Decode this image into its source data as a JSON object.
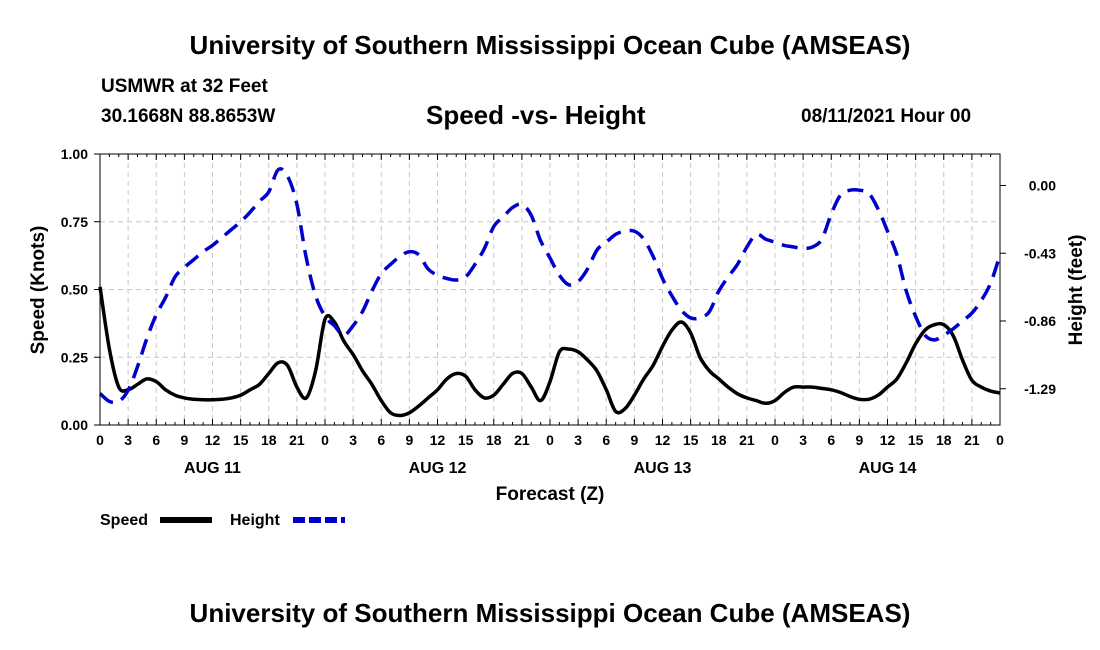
{
  "header": {
    "title": "University of Southern Mississippi Ocean Cube (AMSEAS)",
    "station": "USMWR at 32 Feet",
    "coordinates": "30.1668N  88.8653W",
    "subtitle": "Speed -vs- Height",
    "datetime": "08/11/2021 Hour 00"
  },
  "footer": {
    "title": "University of Southern Mississippi Ocean Cube (AMSEAS)"
  },
  "chart_data": {
    "type": "line",
    "title": "Speed -vs- Height",
    "xlabel": "Forecast (Z)",
    "ylabel": "Speed (Knots)",
    "y2label": "Height (feet)",
    "xlim": [
      0,
      96
    ],
    "ylim": [
      0,
      1.0
    ],
    "y2lim": [
      -1.52,
      0.2
    ],
    "x_ticks": [
      0,
      3,
      6,
      9,
      12,
      15,
      18,
      21,
      24,
      27,
      30,
      33,
      36,
      39,
      42,
      45,
      48,
      51,
      54,
      57,
      60,
      63,
      66,
      69,
      72,
      75,
      78,
      81,
      84,
      87,
      90,
      93,
      96
    ],
    "x_tick_labels": [
      "0",
      "3",
      "6",
      "9",
      "12",
      "15",
      "18",
      "21",
      "0",
      "3",
      "6",
      "9",
      "12",
      "15",
      "18",
      "21",
      "0",
      "3",
      "6",
      "9",
      "12",
      "15",
      "18",
      "21",
      "0",
      "3",
      "6",
      "9",
      "12",
      "15",
      "18",
      "21",
      "0"
    ],
    "date_labels": [
      {
        "x": 12,
        "label": "AUG 11"
      },
      {
        "x": 36,
        "label": "AUG 12"
      },
      {
        "x": 60,
        "label": "AUG 13"
      },
      {
        "x": 84,
        "label": "AUG 14"
      }
    ],
    "y_ticks": [
      "1.00",
      "0.75",
      "0.50",
      "0.25",
      "0.00"
    ],
    "y_tick_values": [
      1.0,
      0.75,
      0.5,
      0.25,
      0.0
    ],
    "y2_ticks": [
      "0.00",
      "-0.43",
      "-0.86",
      "-1.29"
    ],
    "y2_tick_values": [
      0.0,
      -0.43,
      -0.86,
      -1.29
    ],
    "grid": true,
    "legend_position": "bottom-left",
    "series": [
      {
        "name": "Speed",
        "axis": "left",
        "color": "#000000",
        "dash": "solid",
        "x": [
          0,
          1,
          2,
          3,
          4,
          5,
          6,
          7,
          8,
          9,
          10,
          11,
          12,
          13,
          14,
          15,
          16,
          17,
          18,
          19,
          20,
          21,
          22,
          23,
          24,
          25,
          26,
          27,
          28,
          29,
          30,
          31,
          32,
          33,
          34,
          35,
          36,
          37,
          38,
          39,
          40,
          41,
          42,
          43,
          44,
          45,
          46,
          47,
          48,
          49,
          50,
          51,
          52,
          53,
          54,
          55,
          56,
          57,
          58,
          59,
          60,
          61,
          62,
          63,
          64,
          65,
          66,
          67,
          68,
          69,
          70,
          71,
          72,
          73,
          74,
          75,
          76,
          77,
          78,
          79,
          80,
          81,
          82,
          83,
          84,
          85,
          86,
          87,
          88,
          89,
          90,
          91,
          92,
          93,
          94,
          95,
          96
        ],
        "values": [
          0.51,
          0.28,
          0.14,
          0.13,
          0.15,
          0.17,
          0.16,
          0.13,
          0.11,
          0.1,
          0.095,
          0.093,
          0.093,
          0.095,
          0.1,
          0.11,
          0.13,
          0.15,
          0.19,
          0.23,
          0.22,
          0.14,
          0.1,
          0.2,
          0.39,
          0.38,
          0.31,
          0.26,
          0.2,
          0.15,
          0.09,
          0.045,
          0.035,
          0.045,
          0.07,
          0.1,
          0.13,
          0.17,
          0.19,
          0.18,
          0.13,
          0.1,
          0.11,
          0.15,
          0.19,
          0.19,
          0.14,
          0.09,
          0.16,
          0.27,
          0.28,
          0.27,
          0.24,
          0.2,
          0.13,
          0.05,
          0.06,
          0.11,
          0.17,
          0.22,
          0.29,
          0.35,
          0.38,
          0.34,
          0.25,
          0.2,
          0.17,
          0.14,
          0.115,
          0.1,
          0.09,
          0.08,
          0.09,
          0.12,
          0.14,
          0.14,
          0.14,
          0.135,
          0.13,
          0.12,
          0.105,
          0.095,
          0.095,
          0.11,
          0.14,
          0.17,
          0.23,
          0.3,
          0.35,
          0.37,
          0.37,
          0.33,
          0.24,
          0.165,
          0.14,
          0.125,
          0.118
        ]
      },
      {
        "name": "Height",
        "axis": "right",
        "color": "#0000cc",
        "dash": "dashed",
        "x": [
          0,
          1,
          2,
          3,
          4,
          5,
          6,
          7,
          8,
          9,
          10,
          11,
          12,
          13,
          14,
          15,
          16,
          17,
          18,
          19,
          20,
          21,
          22,
          23,
          24,
          25,
          26,
          27,
          28,
          29,
          30,
          31,
          32,
          33,
          34,
          35,
          36,
          37,
          38,
          39,
          40,
          41,
          42,
          43,
          44,
          45,
          46,
          47,
          48,
          49,
          50,
          51,
          52,
          53,
          54,
          55,
          56,
          57,
          58,
          59,
          60,
          61,
          62,
          63,
          64,
          65,
          66,
          67,
          68,
          69,
          70,
          71,
          72,
          73,
          74,
          75,
          76,
          77,
          78,
          79,
          80,
          81,
          82,
          83,
          84,
          85,
          86,
          87,
          88,
          89,
          90,
          91,
          92,
          93,
          94,
          95,
          96
        ],
        "values": [
          -1.32,
          -1.37,
          -1.37,
          -1.3,
          -1.15,
          -0.97,
          -0.82,
          -0.71,
          -0.58,
          -0.52,
          -0.47,
          -0.42,
          -0.38,
          -0.33,
          -0.28,
          -0.23,
          -0.17,
          -0.1,
          -0.04,
          0.1,
          0.06,
          -0.12,
          -0.46,
          -0.7,
          -0.83,
          -0.89,
          -0.95,
          -0.89,
          -0.8,
          -0.67,
          -0.56,
          -0.5,
          -0.45,
          -0.42,
          -0.44,
          -0.53,
          -0.57,
          -0.59,
          -0.6,
          -0.58,
          -0.5,
          -0.4,
          -0.26,
          -0.2,
          -0.14,
          -0.12,
          -0.19,
          -0.35,
          -0.46,
          -0.57,
          -0.63,
          -0.61,
          -0.53,
          -0.41,
          -0.36,
          -0.31,
          -0.29,
          -0.29,
          -0.34,
          -0.45,
          -0.59,
          -0.7,
          -0.79,
          -0.84,
          -0.84,
          -0.8,
          -0.67,
          -0.58,
          -0.5,
          -0.39,
          -0.31,
          -0.34,
          -0.36,
          -0.38,
          -0.39,
          -0.4,
          -0.39,
          -0.34,
          -0.18,
          -0.06,
          -0.03,
          -0.03,
          -0.05,
          -0.15,
          -0.29,
          -0.44,
          -0.67,
          -0.83,
          -0.95,
          -0.98,
          -0.95,
          -0.91,
          -0.86,
          -0.81,
          -0.73,
          -0.62,
          -0.44
        ]
      }
    ],
    "legend": [
      {
        "label": "Speed",
        "color": "#000000",
        "dash": "solid"
      },
      {
        "label": "Height",
        "color": "#0000cc",
        "dash": "dashed"
      }
    ]
  }
}
